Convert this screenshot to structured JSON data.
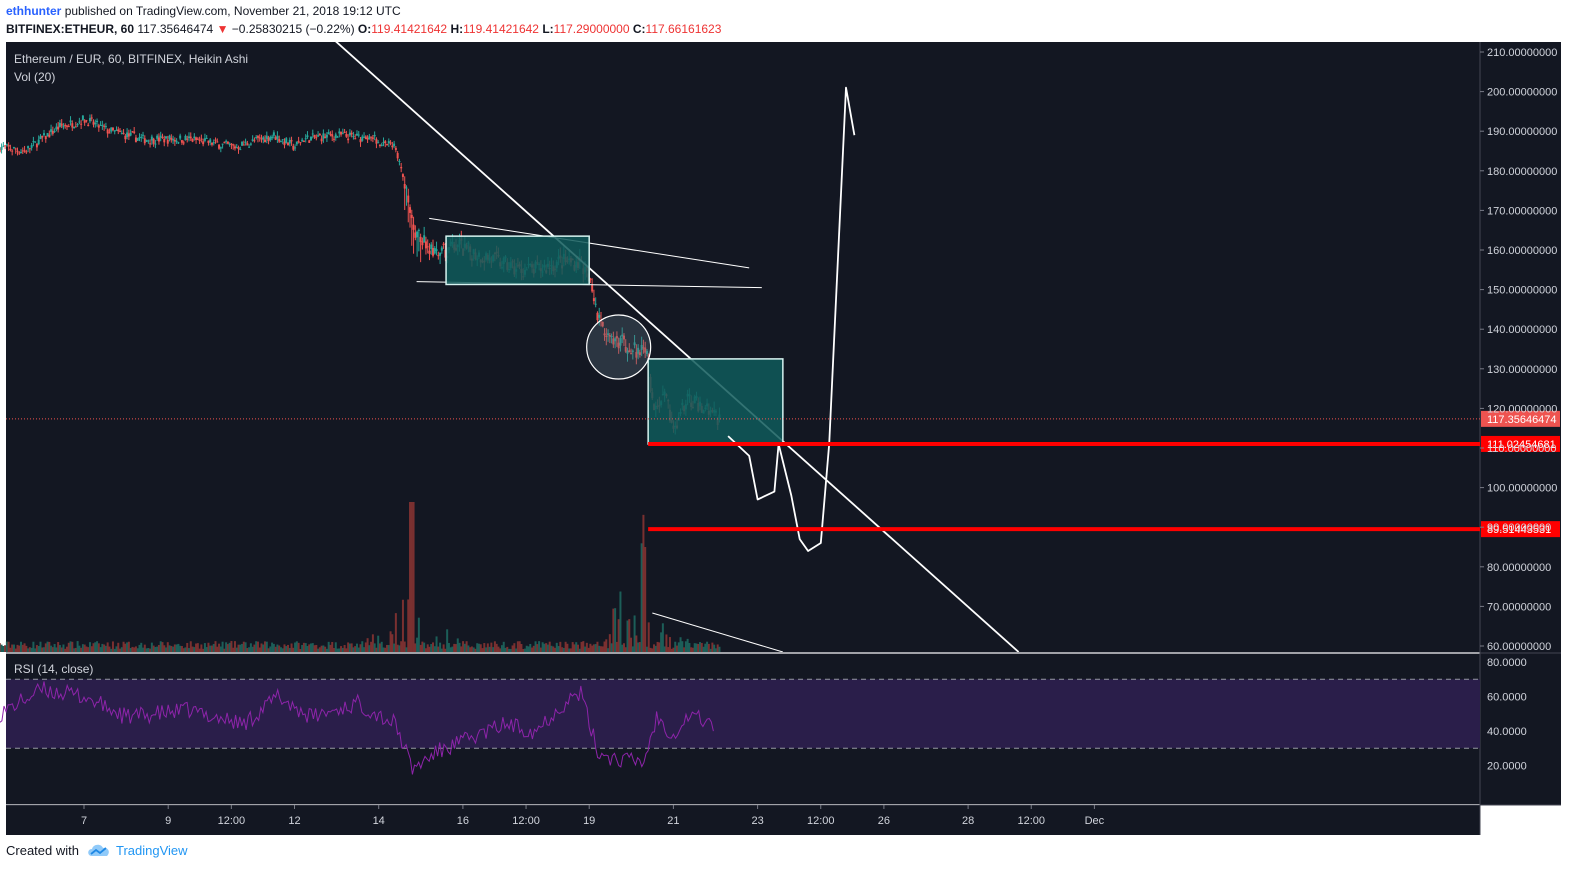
{
  "header": {
    "author": "ethhunter",
    "published_text": "published on TradingView.com, November 21, 2018 19:12 UTC",
    "symbol": "BITFINEX:ETHEUR, 60",
    "last_price": "117.35646474",
    "change": "−0.25830215 (−0.22%)",
    "o_label": "O:",
    "o_value": "119.41421642",
    "h_label": "H:",
    "h_value": "119.41421642",
    "l_label": "L:",
    "l_value": "117.29000000",
    "c_label": "C:",
    "c_value": "117.66161623"
  },
  "legend": {
    "title": "Ethereum / EUR, 60, BITFINEX, Heikin Ashi",
    "volume": "Vol (20)",
    "rsi": "RSI (14, close)"
  },
  "footer": {
    "created_with": "Created with",
    "brand": "TradingView"
  },
  "colors": {
    "background": "#131722",
    "up": "#26a69a",
    "down": "#ef5350",
    "rsi_line": "#8e24aa",
    "rsi_band": "#2a1e4a",
    "annotation": "#ffffff",
    "level": "#ff0000",
    "box_fill": "#0f5a5a"
  },
  "chart_data": [
    {
      "type": "candlestick",
      "title": "Ethereum / EUR, 60, BITFINEX, Heikin Ashi",
      "x_tick_labels": [
        "7",
        "9",
        "12:00",
        "12",
        "14",
        "16",
        "12:00",
        "19",
        "21",
        "23",
        "12:00",
        "26",
        "28",
        "12:00",
        "Dec"
      ],
      "y_tick_labels": [
        "210.00000000",
        "200.00000000",
        "190.00000000",
        "180.00000000",
        "170.00000000",
        "160.00000000",
        "150.00000000",
        "140.00000000",
        "130.00000000",
        "120.00000000",
        "110.00000000",
        "100.00000000",
        "90.00000000",
        "80.00000000",
        "70.00000000",
        "60.00000000"
      ],
      "ylim": [
        60,
        210
      ],
      "price_path": [
        {
          "day": 5.0,
          "price": 186
        },
        {
          "day": 5.6,
          "price": 185
        },
        {
          "day": 6.4,
          "price": 191
        },
        {
          "day": 7.0,
          "price": 193
        },
        {
          "day": 7.6,
          "price": 190
        },
        {
          "day": 8.4,
          "price": 188
        },
        {
          "day": 9.5,
          "price": 188
        },
        {
          "day": 10.6,
          "price": 186
        },
        {
          "day": 11.5,
          "price": 189
        },
        {
          "day": 12.0,
          "price": 186
        },
        {
          "day": 12.2,
          "price": 188
        },
        {
          "day": 13.0,
          "price": 189
        },
        {
          "day": 13.9,
          "price": 188
        },
        {
          "day": 14.4,
          "price": 186
        },
        {
          "day": 14.6,
          "price": 178
        },
        {
          "day": 14.8,
          "price": 165
        },
        {
          "day": 15.1,
          "price": 162
        },
        {
          "day": 15.4,
          "price": 158
        },
        {
          "day": 15.8,
          "price": 161
        },
        {
          "day": 16.6,
          "price": 158
        },
        {
          "day": 17.3,
          "price": 155
        },
        {
          "day": 17.8,
          "price": 155
        },
        {
          "day": 18.3,
          "price": 157
        },
        {
          "day": 18.8,
          "price": 157
        },
        {
          "day": 19.0,
          "price": 152
        },
        {
          "day": 19.3,
          "price": 140
        },
        {
          "day": 19.9,
          "price": 136
        },
        {
          "day": 20.4,
          "price": 133
        },
        {
          "day": 20.5,
          "price": 121
        },
        {
          "day": 20.8,
          "price": 124
        },
        {
          "day": 21.0,
          "price": 114
        },
        {
          "day": 21.3,
          "price": 122
        },
        {
          "day": 21.8,
          "price": 120
        },
        {
          "day": 22.1,
          "price": 117.4
        }
      ],
      "volume_peaks": [
        {
          "day": 14.8,
          "level": 1.0
        },
        {
          "day": 20.3,
          "level": 0.7
        }
      ],
      "price_labels": [
        {
          "text": "117.35646474",
          "price": 117.35646474
        },
        {
          "text": "111.02454681",
          "price": 111.02454681
        },
        {
          "text": "89.51443531",
          "price": 89.51443531
        }
      ],
      "horizontal_levels": [
        111.02454681,
        89.51443531
      ],
      "projection": [
        {
          "day": 22.3,
          "price": 113
        },
        {
          "day": 22.8,
          "price": 108
        },
        {
          "day": 23.0,
          "price": 97
        },
        {
          "day": 23.4,
          "price": 99
        },
        {
          "day": 23.5,
          "price": 111
        },
        {
          "day": 23.8,
          "price": 98
        },
        {
          "day": 24.0,
          "price": 87
        },
        {
          "day": 24.2,
          "price": 84
        },
        {
          "day": 24.5,
          "price": 86
        },
        {
          "day": 24.7,
          "price": 111
        },
        {
          "day": 25.1,
          "price": 201
        },
        {
          "day": 25.3,
          "price": 189
        }
      ]
    },
    {
      "type": "line",
      "title": "RSI (14, close)",
      "y_tick_labels": [
        "80.0000",
        "60.0000",
        "40.0000",
        "20.0000"
      ],
      "ylim": [
        0,
        80
      ],
      "bands": [
        30,
        70
      ],
      "path": [
        {
          "day": 5.0,
          "value": 50
        },
        {
          "day": 6.0,
          "value": 64
        },
        {
          "day": 7.0,
          "value": 60
        },
        {
          "day": 8.0,
          "value": 48
        },
        {
          "day": 9.5,
          "value": 52
        },
        {
          "day": 10.8,
          "value": 44
        },
        {
          "day": 11.6,
          "value": 60
        },
        {
          "day": 12.4,
          "value": 48
        },
        {
          "day": 13.5,
          "value": 56
        },
        {
          "day": 14.4,
          "value": 44
        },
        {
          "day": 14.8,
          "value": 18
        },
        {
          "day": 15.4,
          "value": 28
        },
        {
          "day": 16.2,
          "value": 36
        },
        {
          "day": 17.0,
          "value": 44
        },
        {
          "day": 17.7,
          "value": 40
        },
        {
          "day": 18.5,
          "value": 58
        },
        {
          "day": 18.8,
          "value": 62
        },
        {
          "day": 19.2,
          "value": 28
        },
        {
          "day": 19.6,
          "value": 24
        },
        {
          "day": 20.3,
          "value": 22
        },
        {
          "day": 20.6,
          "value": 48
        },
        {
          "day": 21.0,
          "value": 38
        },
        {
          "day": 21.4,
          "value": 50
        },
        {
          "day": 22.0,
          "value": 43
        }
      ]
    }
  ]
}
